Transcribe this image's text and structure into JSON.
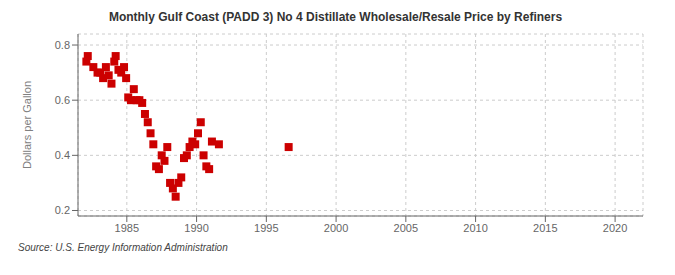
{
  "chart_data": {
    "type": "scatter",
    "title": "Monthly Gulf Coast (PADD 3) No 4 Distillate Wholesale/Resale Price by Refiners",
    "ylabel": "Dollars per Gallon",
    "source": "Source: U.S. Energy Information Administration",
    "color": "#cc0000",
    "marker": "square",
    "grid": true,
    "xlim": [
      1981.5,
      2022
    ],
    "ylim": [
      0.18,
      0.84
    ],
    "xticks": [
      1985,
      1990,
      1995,
      2000,
      2005,
      2010,
      2015,
      2020
    ],
    "yticks": [
      0.2,
      0.4,
      0.6,
      0.8
    ],
    "x": [
      1982.1,
      1982.2,
      1982.6,
      1982.9,
      1983.1,
      1983.3,
      1983.5,
      1983.7,
      1983.9,
      1984.1,
      1984.2,
      1984.4,
      1984.6,
      1984.8,
      1984.95,
      1985.1,
      1985.3,
      1985.5,
      1985.7,
      1985.9,
      1986.1,
      1986.3,
      1986.5,
      1986.7,
      1986.9,
      1987.1,
      1987.3,
      1987.5,
      1987.7,
      1987.9,
      1988.1,
      1988.3,
      1988.5,
      1988.7,
      1988.9,
      1989.1,
      1989.3,
      1989.5,
      1989.7,
      1989.9,
      1990.1,
      1990.3,
      1990.5,
      1990.7,
      1990.9,
      1991.1,
      1991.6,
      1996.6
    ],
    "values": [
      0.74,
      0.76,
      0.72,
      0.7,
      0.7,
      0.68,
      0.72,
      0.69,
      0.66,
      0.74,
      0.76,
      0.71,
      0.7,
      0.72,
      0.68,
      0.61,
      0.6,
      0.64,
      0.6,
      0.6,
      0.59,
      0.55,
      0.52,
      0.48,
      0.44,
      0.36,
      0.35,
      0.4,
      0.38,
      0.43,
      0.3,
      0.28,
      0.25,
      0.3,
      0.32,
      0.39,
      0.4,
      0.43,
      0.45,
      0.44,
      0.48,
      0.52,
      0.4,
      0.36,
      0.35,
      0.45,
      0.44,
      0.43
    ]
  }
}
